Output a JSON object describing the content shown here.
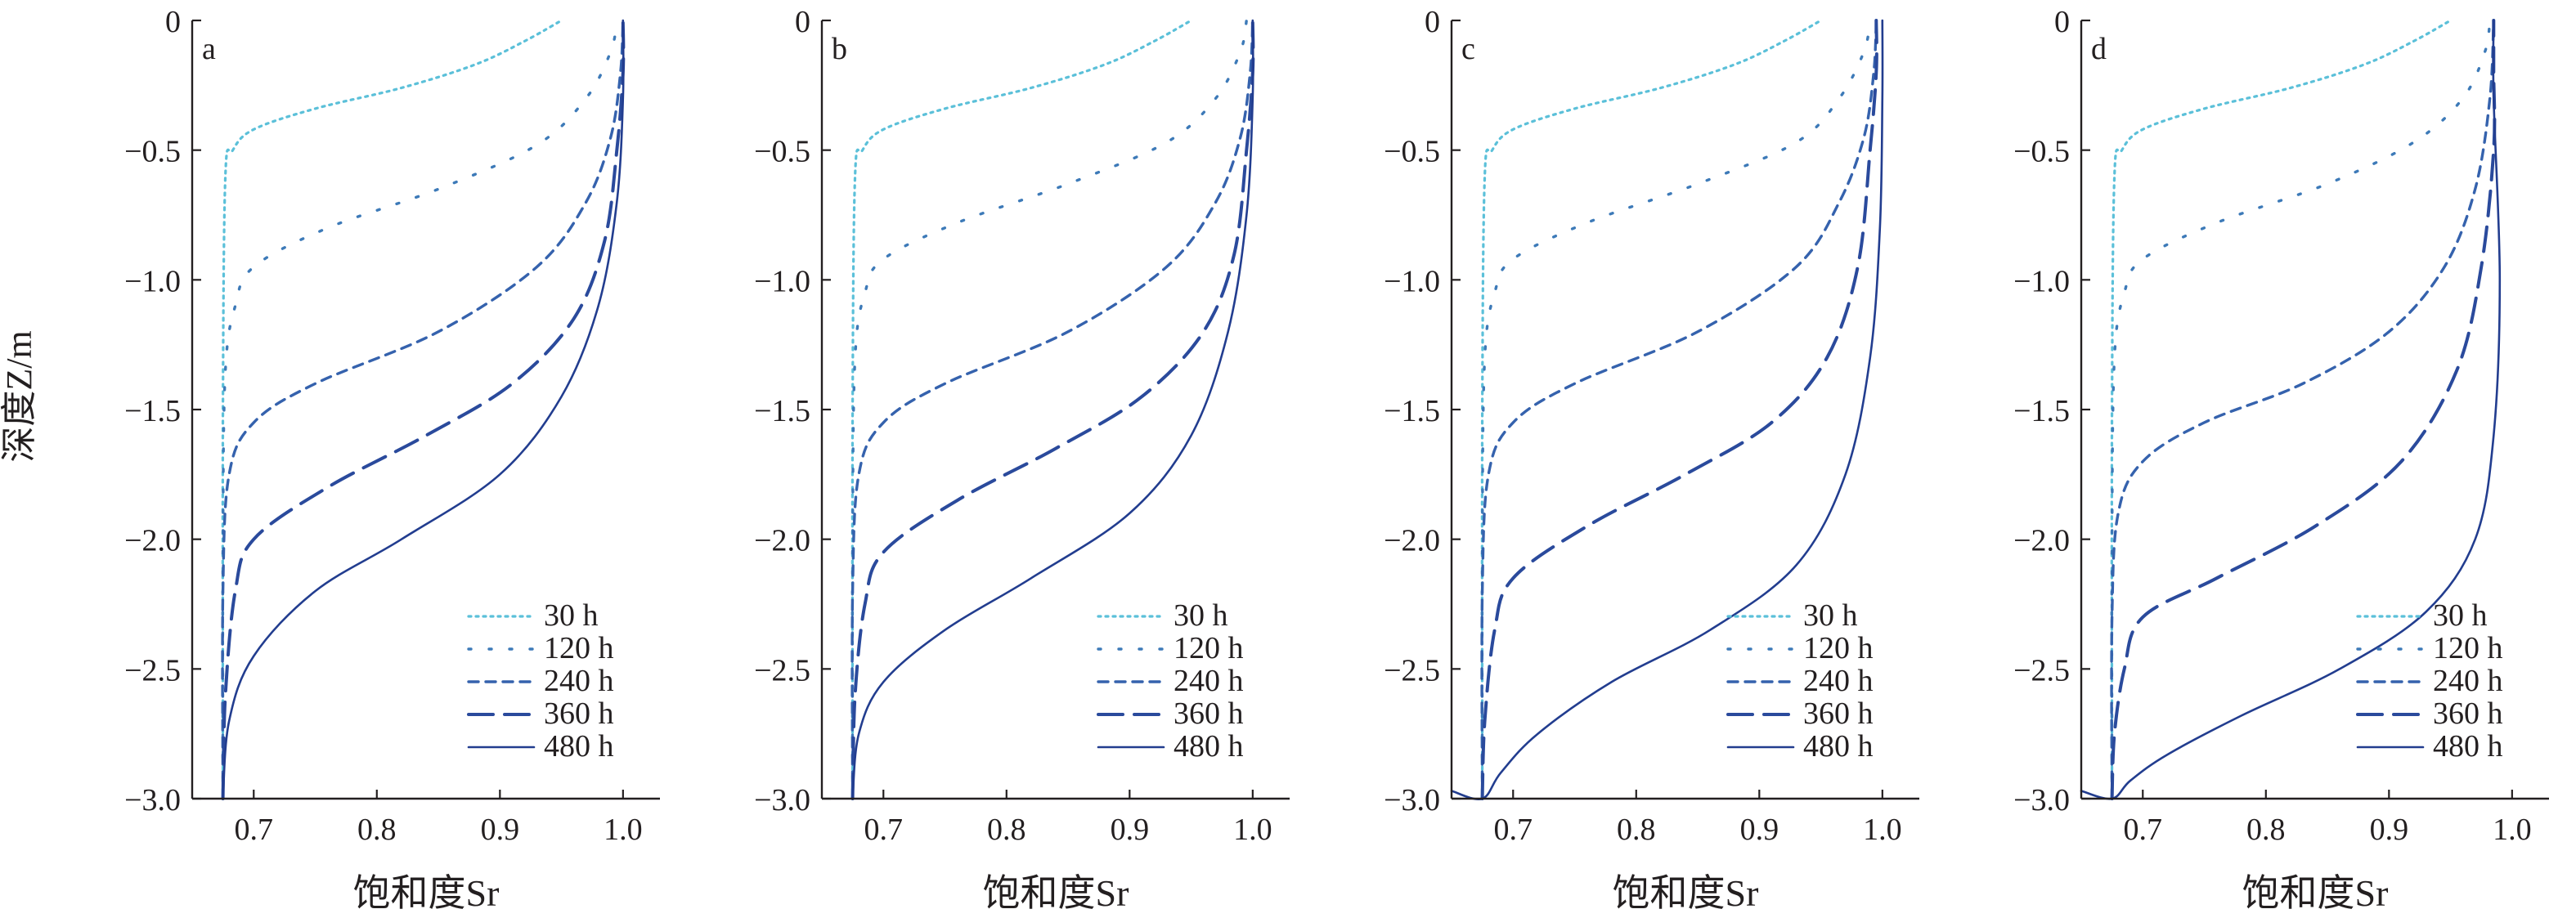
{
  "figure": {
    "ylabel": "深度Z/m",
    "xlabel": "饱和度Sr"
  },
  "legend_labels": [
    "30 h",
    "120 h",
    "240 h",
    "360 h",
    "480 h"
  ],
  "series_styles": [
    {
      "name": "30 h",
      "color": "#5bc0d9",
      "dash": "dotted"
    },
    {
      "name": "120 h",
      "color": "#3d7ab8",
      "dash": "sparse-dotted"
    },
    {
      "name": "240 h",
      "color": "#3562ad",
      "dash": "short-dashed"
    },
    {
      "name": "360 h",
      "color": "#2a4a9c",
      "dash": "long-dashed"
    },
    {
      "name": "480 h",
      "color": "#223d8f",
      "dash": "solid"
    }
  ],
  "chart_data": [
    {
      "type": "line",
      "panel": "a",
      "xlabel": "饱和度Sr",
      "ylabel": "深度Z/m",
      "xlim": [
        0.65,
        1.03
      ],
      "ylim": [
        -3.0,
        0.0
      ],
      "xticks": [
        "0.7",
        "0.8",
        "0.9",
        "1.0"
      ],
      "yticks": [
        "0",
        "-0.5",
        "-1.0",
        "-1.5",
        "-2.0",
        "-2.5",
        "-3.0"
      ],
      "legend_position": "bottom-right",
      "series": [
        {
          "name": "30 h",
          "x": [
            0.675,
            0.675,
            0.677,
            0.683,
            0.7,
            0.75,
            0.82,
            0.88,
            0.92,
            0.95
          ],
          "y": [
            -3.0,
            -1.5,
            -0.6,
            -0.5,
            -0.42,
            -0.34,
            -0.26,
            -0.17,
            -0.08,
            0.0
          ]
        },
        {
          "name": "120 h",
          "x": [
            0.675,
            0.675,
            0.677,
            0.685,
            0.7,
            0.76,
            0.85,
            0.93,
            0.97,
            0.99,
            0.995
          ],
          "y": [
            -3.0,
            -2.0,
            -1.35,
            -1.1,
            -0.95,
            -0.8,
            -0.65,
            -0.48,
            -0.3,
            -0.12,
            0.0
          ]
        },
        {
          "name": "240 h",
          "x": [
            0.675,
            0.675,
            0.68,
            0.7,
            0.75,
            0.85,
            0.93,
            0.97,
            0.99,
            0.998,
            1.0
          ],
          "y": [
            -3.0,
            -2.2,
            -1.75,
            -1.55,
            -1.4,
            -1.2,
            -0.95,
            -0.7,
            -0.45,
            -0.2,
            0.0
          ]
        },
        {
          "name": "360 h",
          "x": [
            0.675,
            0.677,
            0.685,
            0.7,
            0.76,
            0.84,
            0.91,
            0.96,
            0.985,
            0.995,
            1.0,
            1.0
          ],
          "y": [
            -3.0,
            -2.6,
            -2.2,
            -2.0,
            -1.8,
            -1.6,
            -1.4,
            -1.15,
            -0.85,
            -0.5,
            -0.2,
            0.0
          ]
        },
        {
          "name": "480 h",
          "x": [
            0.675,
            0.68,
            0.7,
            0.75,
            0.82,
            0.9,
            0.95,
            0.98,
            0.995,
            1.0,
            1.0
          ],
          "y": [
            -3.0,
            -2.7,
            -2.45,
            -2.2,
            -2.0,
            -1.75,
            -1.45,
            -1.1,
            -0.7,
            -0.3,
            0.0
          ]
        }
      ]
    },
    {
      "type": "line",
      "panel": "b",
      "xlabel": "饱和度Sr",
      "ylabel": "",
      "xlim": [
        0.65,
        1.03
      ],
      "ylim": [
        -3.0,
        0.0
      ],
      "xticks": [
        "0.7",
        "0.8",
        "0.9",
        "1.0"
      ],
      "yticks": [
        "0",
        "-0.5",
        "-1.0",
        "-1.5",
        "-2.0",
        "-2.5",
        "-3.0"
      ],
      "legend_position": "bottom-right",
      "series": [
        {
          "name": "30 h",
          "x": [
            0.675,
            0.675,
            0.677,
            0.683,
            0.7,
            0.75,
            0.82,
            0.88,
            0.92,
            0.95
          ],
          "y": [
            -3.0,
            -1.5,
            -0.6,
            -0.5,
            -0.42,
            -0.34,
            -0.26,
            -0.17,
            -0.08,
            0.0
          ]
        },
        {
          "name": "120 h",
          "x": [
            0.675,
            0.675,
            0.677,
            0.685,
            0.7,
            0.76,
            0.85,
            0.93,
            0.97,
            0.99,
            0.995
          ],
          "y": [
            -3.0,
            -2.0,
            -1.3,
            -1.05,
            -0.92,
            -0.78,
            -0.63,
            -0.47,
            -0.3,
            -0.12,
            0.0
          ]
        },
        {
          "name": "240 h",
          "x": [
            0.675,
            0.675,
            0.68,
            0.7,
            0.75,
            0.85,
            0.93,
            0.97,
            0.99,
            0.998,
            1.0
          ],
          "y": [
            -3.0,
            -2.2,
            -1.75,
            -1.55,
            -1.4,
            -1.2,
            -0.95,
            -0.7,
            -0.45,
            -0.2,
            0.0
          ]
        },
        {
          "name": "360 h",
          "x": [
            0.675,
            0.677,
            0.685,
            0.7,
            0.76,
            0.84,
            0.91,
            0.96,
            0.985,
            0.995,
            1.0,
            1.0
          ],
          "y": [
            -3.0,
            -2.6,
            -2.25,
            -2.05,
            -1.85,
            -1.65,
            -1.45,
            -1.2,
            -0.9,
            -0.5,
            -0.2,
            0.0
          ]
        },
        {
          "name": "480 h",
          "x": [
            0.675,
            0.68,
            0.7,
            0.75,
            0.82,
            0.9,
            0.95,
            0.98,
            0.995,
            1.0,
            1.0
          ],
          "y": [
            -3.0,
            -2.75,
            -2.55,
            -2.35,
            -2.15,
            -1.9,
            -1.6,
            -1.2,
            -0.75,
            -0.3,
            0.0
          ]
        }
      ]
    },
    {
      "type": "line",
      "panel": "c",
      "xlabel": "饱和度Sr",
      "ylabel": "",
      "xlim": [
        0.65,
        1.03
      ],
      "ylim": [
        -3.0,
        0.0
      ],
      "xticks": [
        "0.7",
        "0.8",
        "0.9",
        "1.0"
      ],
      "yticks": [
        "0",
        "-0.5",
        "-1.0",
        "-1.5",
        "-2.0",
        "-2.5",
        "-3.0"
      ],
      "legend_position": "bottom-right",
      "series": [
        {
          "name": "30 h",
          "x": [
            0.675,
            0.675,
            0.677,
            0.683,
            0.7,
            0.75,
            0.82,
            0.88,
            0.92,
            0.95
          ],
          "y": [
            -3.0,
            -1.5,
            -0.6,
            -0.5,
            -0.42,
            -0.34,
            -0.26,
            -0.17,
            -0.08,
            0.0
          ]
        },
        {
          "name": "120 h",
          "x": [
            0.675,
            0.675,
            0.677,
            0.685,
            0.7,
            0.76,
            0.85,
            0.93,
            0.965,
            0.985,
            0.99
          ],
          "y": [
            -3.0,
            -2.0,
            -1.3,
            -1.05,
            -0.92,
            -0.78,
            -0.63,
            -0.47,
            -0.3,
            -0.12,
            0.0
          ]
        },
        {
          "name": "240 h",
          "x": [
            0.675,
            0.675,
            0.68,
            0.7,
            0.75,
            0.85,
            0.93,
            0.965,
            0.985,
            0.993,
            0.995
          ],
          "y": [
            -3.0,
            -2.2,
            -1.75,
            -1.55,
            -1.4,
            -1.2,
            -0.95,
            -0.7,
            -0.45,
            -0.2,
            0.0
          ]
        },
        {
          "name": "360 h",
          "x": [
            0.675,
            0.677,
            0.685,
            0.7,
            0.76,
            0.84,
            0.91,
            0.955,
            0.98,
            0.99,
            0.995,
            0.995
          ],
          "y": [
            -3.0,
            -2.7,
            -2.35,
            -2.15,
            -1.95,
            -1.75,
            -1.55,
            -1.3,
            -0.95,
            -0.5,
            -0.2,
            0.0
          ]
        },
        {
          "name": "480 h",
          "x": [
            0.65,
            0.675,
            0.69,
            0.72,
            0.78,
            0.86,
            0.93,
            0.97,
            0.99,
            0.998,
            1.0,
            1.0
          ],
          "y": [
            -2.97,
            -3.0,
            -2.9,
            -2.75,
            -2.55,
            -2.35,
            -2.1,
            -1.75,
            -1.3,
            -0.8,
            -0.3,
            0.0
          ]
        }
      ]
    },
    {
      "type": "line",
      "panel": "d",
      "xlabel": "饱和度Sr",
      "ylabel": "",
      "xlim": [
        0.65,
        1.03
      ],
      "ylim": [
        -3.0,
        0.0
      ],
      "xticks": [
        "0.7",
        "0.8",
        "0.9",
        "1.0"
      ],
      "yticks": [
        "0",
        "-0.5",
        "-1.0",
        "-1.5",
        "-2.0",
        "-2.5",
        "-3.0"
      ],
      "legend_position": "bottom-right",
      "series": [
        {
          "name": "30 h",
          "x": [
            0.675,
            0.675,
            0.677,
            0.683,
            0.7,
            0.75,
            0.82,
            0.88,
            0.92,
            0.95
          ],
          "y": [
            -3.0,
            -1.5,
            -0.6,
            -0.5,
            -0.42,
            -0.34,
            -0.26,
            -0.17,
            -0.08,
            0.0
          ]
        },
        {
          "name": "120 h",
          "x": [
            0.675,
            0.675,
            0.677,
            0.685,
            0.7,
            0.76,
            0.85,
            0.92,
            0.96,
            0.978,
            0.982
          ],
          "y": [
            -3.0,
            -2.0,
            -1.3,
            -1.05,
            -0.92,
            -0.78,
            -0.63,
            -0.47,
            -0.3,
            -0.12,
            0.0
          ]
        },
        {
          "name": "240 h",
          "x": [
            0.675,
            0.675,
            0.68,
            0.7,
            0.75,
            0.83,
            0.9,
            0.945,
            0.97,
            0.982,
            0.985
          ],
          "y": [
            -3.0,
            -2.3,
            -1.9,
            -1.7,
            -1.55,
            -1.4,
            -1.2,
            -0.95,
            -0.65,
            -0.3,
            0.0
          ]
        },
        {
          "name": "360 h",
          "x": [
            0.675,
            0.677,
            0.685,
            0.7,
            0.76,
            0.84,
            0.91,
            0.955,
            0.975,
            0.985,
            0.985,
            0.985
          ],
          "y": [
            -3.0,
            -2.75,
            -2.5,
            -2.3,
            -2.15,
            -1.95,
            -1.7,
            -1.35,
            -0.95,
            -0.5,
            -0.2,
            0.0
          ]
        },
        {
          "name": "480 h",
          "x": [
            0.65,
            0.675,
            0.69,
            0.72,
            0.78,
            0.86,
            0.93,
            0.97,
            0.985,
            0.99,
            0.985,
            0.985
          ],
          "y": [
            -2.97,
            -3.0,
            -2.93,
            -2.83,
            -2.68,
            -2.5,
            -2.28,
            -2.0,
            -1.6,
            -1.0,
            -0.3,
            0.0
          ]
        }
      ]
    }
  ]
}
